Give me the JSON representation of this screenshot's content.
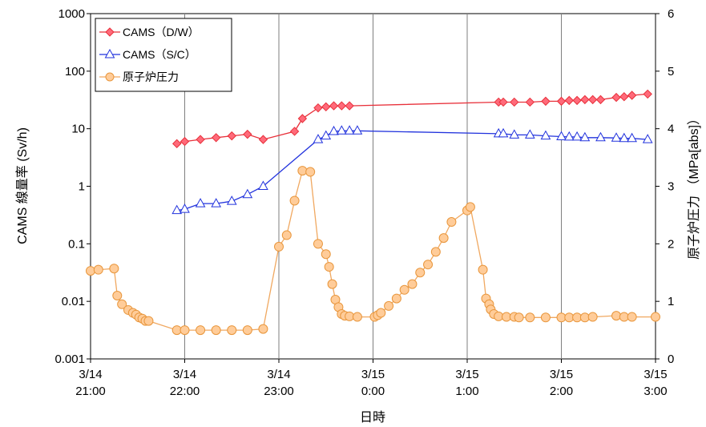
{
  "chart_data": {
    "type": "line",
    "title": "",
    "xlabel": "日時",
    "ylabel_left": "CAMS 線量率 (Sv/h)",
    "ylabel_right": "原子炉圧力 （MPa[abs]）",
    "y_left_scale": "log",
    "y_left_range": [
      0.001,
      1000
    ],
    "y_left_ticks": [
      "0.001",
      "0.01",
      "0.1",
      "1",
      "10",
      "100",
      "1000"
    ],
    "y_right_range": [
      0,
      6
    ],
    "y_right_ticks": [
      "0",
      "1",
      "2",
      "3",
      "4",
      "5",
      "6"
    ],
    "x_range": [
      "3/14 21:00",
      "3/15 3:00"
    ],
    "x_ticks": [
      {
        "date": "3/14",
        "time": "21:00"
      },
      {
        "date": "3/14",
        "time": "22:00"
      },
      {
        "date": "3/14",
        "time": "23:00"
      },
      {
        "date": "3/15",
        "time": "0:00"
      },
      {
        "date": "3/15",
        "time": "1:00"
      },
      {
        "date": "3/15",
        "time": "2:00"
      },
      {
        "date": "3/15",
        "time": "3:00"
      }
    ],
    "grid": "vertical",
    "legend_position": "top-left",
    "series": [
      {
        "name": "CAMS（D/W）",
        "axis": "left",
        "color": "#e8303a",
        "marker": "diamond",
        "x": [
          "3/14 21:55",
          "3/14 22:00",
          "3/14 22:10",
          "3/14 22:20",
          "3/14 22:30",
          "3/14 22:40",
          "3/14 22:50",
          "3/14 23:10",
          "3/14 23:15",
          "3/14 23:25",
          "3/14 23:30",
          "3/14 23:35",
          "3/14 23:40",
          "3/14 23:45",
          "3/15 1:20",
          "3/15 1:23",
          "3/15 1:30",
          "3/15 1:40",
          "3/15 1:50",
          "3/15 2:00",
          "3/15 2:05",
          "3/15 2:10",
          "3/15 2:15",
          "3/15 2:20",
          "3/15 2:25",
          "3/15 2:35",
          "3/15 2:40",
          "3/15 2:45",
          "3/15 2:55"
        ],
        "y": [
          5.5,
          6,
          6.5,
          7,
          7.5,
          8,
          6.5,
          9,
          15,
          23,
          24,
          25,
          25,
          25,
          29,
          29,
          29,
          29,
          30,
          30,
          31,
          31,
          32,
          32,
          32,
          35,
          36,
          38,
          40
        ]
      },
      {
        "name": "CAMS（S/C）",
        "axis": "left",
        "color": "#2233dd",
        "marker": "triangle",
        "x": [
          "3/14 21:55",
          "3/14 22:00",
          "3/14 22:10",
          "3/14 22:20",
          "3/14 22:30",
          "3/14 22:40",
          "3/14 22:50",
          "3/14 23:25",
          "3/14 23:30",
          "3/14 23:35",
          "3/14 23:40",
          "3/14 23:45",
          "3/14 23:50",
          "3/15 1:20",
          "3/15 1:23",
          "3/15 1:30",
          "3/15 1:40",
          "3/15 1:50",
          "3/15 2:00",
          "3/15 2:05",
          "3/15 2:10",
          "3/15 2:15",
          "3/15 2:25",
          "3/15 2:35",
          "3/15 2:40",
          "3/15 2:45",
          "3/15 2:55"
        ],
        "y": [
          0.38,
          0.4,
          0.5,
          0.5,
          0.55,
          0.72,
          1.0,
          6.5,
          7.5,
          9,
          9.2,
          9.2,
          9.2,
          8.2,
          8.2,
          7.8,
          7.8,
          7.5,
          7.3,
          7.2,
          7.2,
          7.0,
          7.0,
          6.9,
          6.8,
          6.8,
          6.5
        ]
      },
      {
        "name": "原子炉圧力",
        "axis": "right",
        "color": "#f0a860",
        "marker": "circle",
        "x": [
          "3/14 21:00",
          "3/14 21:05",
          "3/14 21:15",
          "3/14 21:17",
          "3/14 21:20",
          "3/14 21:24",
          "3/14 21:27",
          "3/14 21:29",
          "3/14 21:31",
          "3/14 21:33",
          "3/14 21:35",
          "3/14 21:37",
          "3/14 21:55",
          "3/14 22:00",
          "3/14 22:10",
          "3/14 22:20",
          "3/14 22:30",
          "3/14 22:40",
          "3/14 22:50",
          "3/14 23:00",
          "3/14 23:05",
          "3/14 23:10",
          "3/14 23:15",
          "3/14 23:20",
          "3/14 23:25",
          "3/14 23:30",
          "3/14 23:32",
          "3/14 23:34",
          "3/14 23:36",
          "3/14 23:38",
          "3/14 23:40",
          "3/14 23:42",
          "3/14 23:45",
          "3/14 23:50",
          "3/15 0:01",
          "3/15 0:03",
          "3/15 0:05",
          "3/15 0:10",
          "3/15 0:15",
          "3/15 0:20",
          "3/15 0:25",
          "3/15 0:30",
          "3/15 0:35",
          "3/15 0:40",
          "3/15 0:45",
          "3/15 0:50",
          "3/15 1:00",
          "3/15 1:02",
          "3/15 1:10",
          "3/15 1:12",
          "3/15 1:14",
          "3/15 1:15",
          "3/15 1:17",
          "3/15 1:20",
          "3/15 1:25",
          "3/15 1:30",
          "3/15 1:33",
          "3/15 1:40",
          "3/15 1:50",
          "3/15 2:00",
          "3/15 2:05",
          "3/15 2:10",
          "3/15 2:15",
          "3/15 2:20",
          "3/15 2:35",
          "3/15 2:40",
          "3/15 2:45",
          "3/15 3:00"
        ],
        "y": [
          1.53,
          1.55,
          1.57,
          1.1,
          0.95,
          0.85,
          0.8,
          0.77,
          0.72,
          0.7,
          0.66,
          0.66,
          0.5,
          0.5,
          0.5,
          0.5,
          0.5,
          0.5,
          0.52,
          1.95,
          2.15,
          2.75,
          3.27,
          3.25,
          2.0,
          1.82,
          1.6,
          1.3,
          1.03,
          0.9,
          0.78,
          0.75,
          0.74,
          0.73,
          0.73,
          0.76,
          0.8,
          0.92,
          1.05,
          1.2,
          1.3,
          1.5,
          1.64,
          1.86,
          2.1,
          2.38,
          2.58,
          2.64,
          1.55,
          1.05,
          0.95,
          0.86,
          0.78,
          0.74,
          0.73,
          0.73,
          0.72,
          0.72,
          0.72,
          0.72,
          0.72,
          0.72,
          0.72,
          0.73,
          0.75,
          0.73,
          0.73,
          0.73
        ]
      }
    ]
  }
}
